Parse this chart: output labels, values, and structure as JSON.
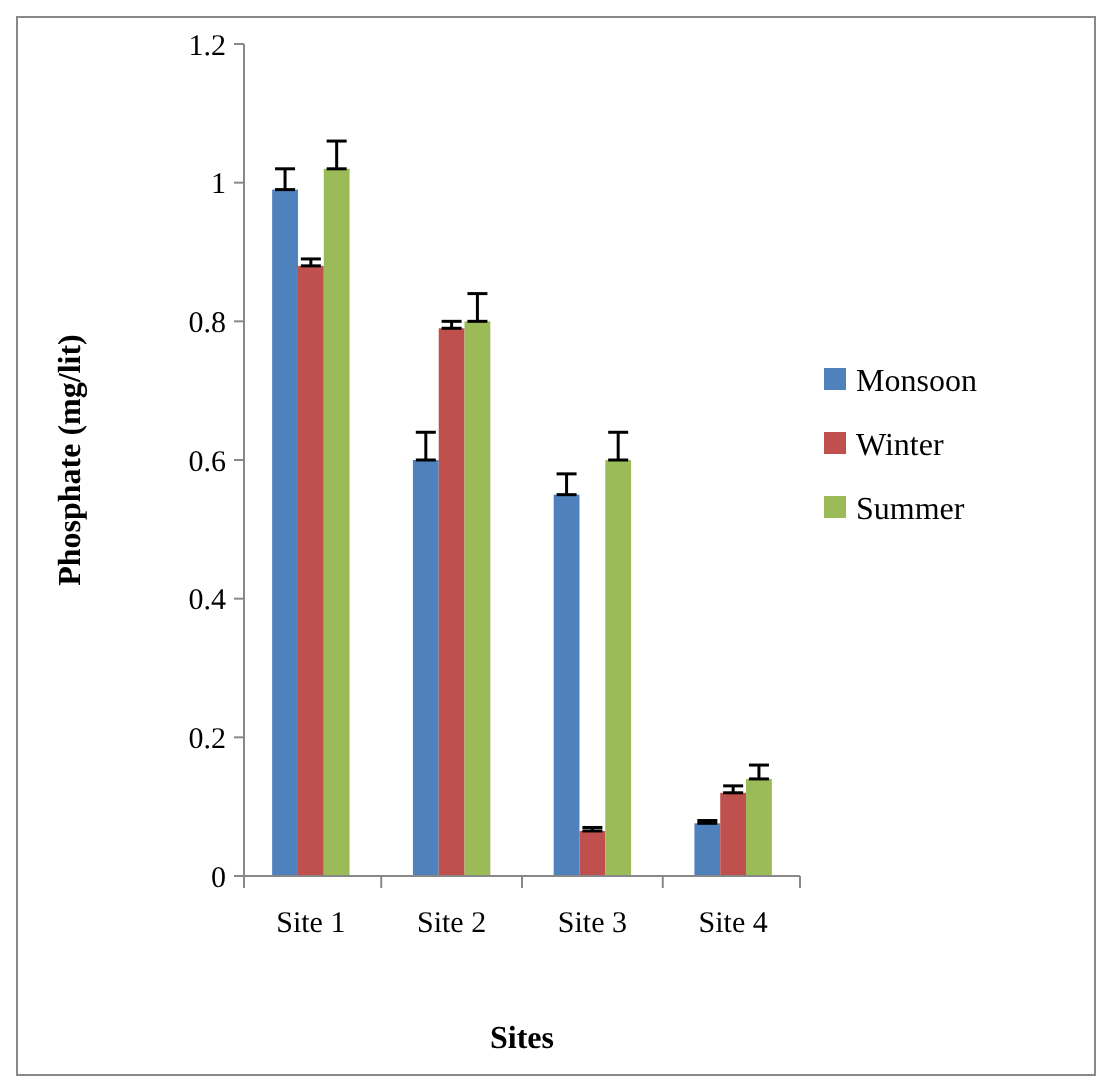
{
  "chart_data": {
    "type": "bar",
    "xlabel": "Sites",
    "ylabel": "Phosphate (mg/lit)",
    "categories": [
      "Site 1",
      "Site 2",
      "Site 3",
      "Site 4"
    ],
    "series": [
      {
        "name": "Monsoon",
        "color": "#4f81bd",
        "values": [
          0.99,
          0.6,
          0.55,
          0.076
        ],
        "errors": [
          [
            0.99,
            1.02
          ],
          [
            0.6,
            0.64
          ],
          [
            0.55,
            0.58
          ],
          [
            0.076,
            0.08
          ]
        ]
      },
      {
        "name": "Winter",
        "color": "#c0504d",
        "values": [
          0.88,
          0.79,
          0.065,
          0.12
        ],
        "errors": [
          [
            0.88,
            0.89
          ],
          [
            0.79,
            0.8
          ],
          [
            0.065,
            0.07
          ],
          [
            0.12,
            0.13
          ]
        ]
      },
      {
        "name": "Summer",
        "color": "#9bbb59",
        "values": [
          1.02,
          0.8,
          0.6,
          0.14
        ],
        "errors": [
          [
            1.02,
            1.06
          ],
          [
            0.8,
            0.84
          ],
          [
            0.6,
            0.64
          ],
          [
            0.14,
            0.16
          ]
        ]
      }
    ],
    "ylim": [
      0,
      1.2
    ],
    "yticks": [
      0,
      0.2,
      0.4,
      0.6,
      0.8,
      1,
      1.2
    ],
    "grid": false,
    "legend": "right"
  }
}
